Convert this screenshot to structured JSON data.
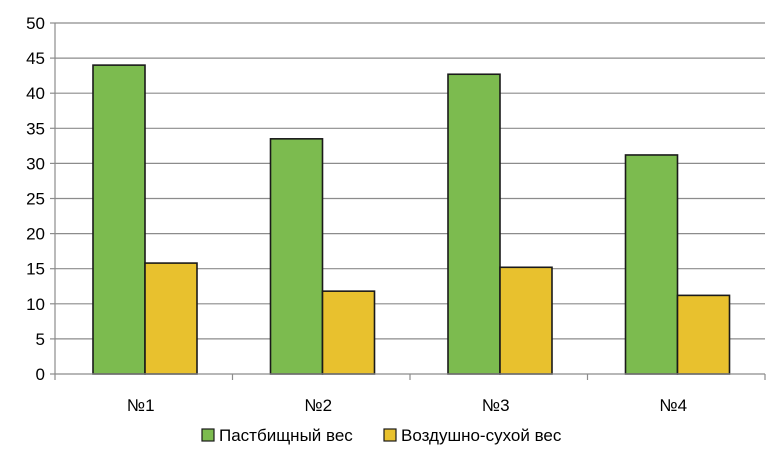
{
  "chart_data": {
    "type": "bar",
    "categories": [
      "№1",
      "№2",
      "№3",
      "№4"
    ],
    "series": [
      {
        "name": "Пастбищный вес",
        "values": [
          44.0,
          33.5,
          42.7,
          31.2
        ],
        "color": "#7cbb4f"
      },
      {
        "name": "Воздушно-сухой вес",
        "values": [
          15.8,
          11.8,
          15.2,
          11.2
        ],
        "color": "#e8c12e"
      }
    ],
    "ylim": [
      0,
      50
    ],
    "yticks": [
      0,
      5,
      10,
      15,
      20,
      25,
      30,
      35,
      40,
      45,
      50
    ],
    "grid": true,
    "legend_position": "bottom",
    "title": "",
    "xlabel": "",
    "ylabel": ""
  }
}
